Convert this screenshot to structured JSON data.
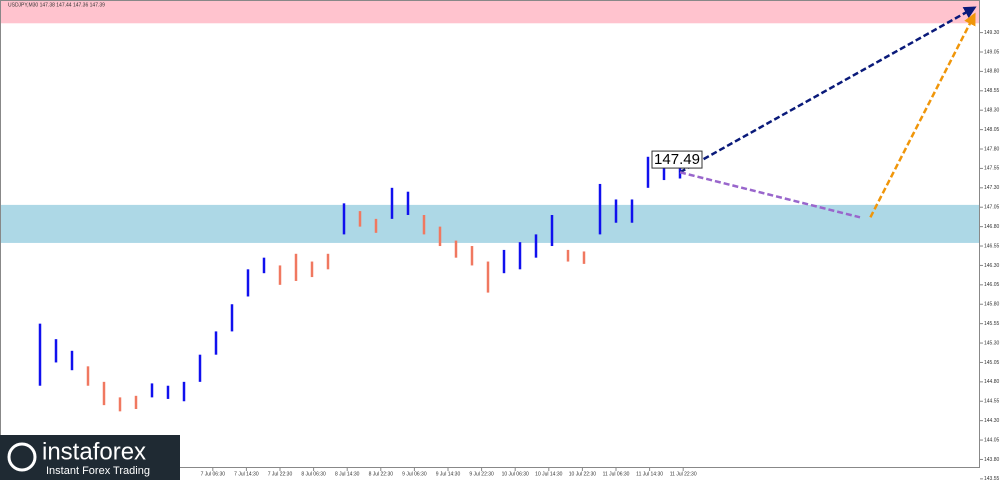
{
  "chart_data": {
    "type": "range-bars",
    "title": "USDJPY,M30  147.38 147.44 147.36 147.39",
    "lows": [
      144.75,
      145.05,
      144.95,
      144.75,
      144.5,
      144.42,
      144.45,
      144.6,
      144.58,
      144.55,
      144.8,
      145.15,
      145.45,
      145.9,
      146.2,
      146.05,
      146.1,
      146.15,
      146.25,
      146.7,
      146.8,
      146.72,
      146.9,
      146.95,
      146.7,
      146.55,
      146.4,
      146.3,
      145.95,
      146.2,
      146.25,
      146.4,
      146.55,
      146.35,
      146.32,
      146.7,
      146.85,
      146.85,
      147.3,
      147.4,
      147.42
    ],
    "highs": [
      145.55,
      145.35,
      145.2,
      145.0,
      144.8,
      144.6,
      144.62,
      144.78,
      144.75,
      144.8,
      145.15,
      145.45,
      145.8,
      146.25,
      146.4,
      146.3,
      146.45,
      146.35,
      146.45,
      147.1,
      147.0,
      146.9,
      147.3,
      147.25,
      146.95,
      146.8,
      146.62,
      146.55,
      146.35,
      146.5,
      146.6,
      146.7,
      146.95,
      146.5,
      146.48,
      147.35,
      147.15,
      147.15,
      147.7,
      147.58,
      147.55
    ],
    "bar_colors": [
      "#1010ee",
      "#1010ee",
      "#1010ee",
      "#f07860",
      "#f07860",
      "#f07860",
      "#f07860",
      "#1010ee",
      "#1010ee",
      "#1010ee",
      "#1010ee",
      "#1010ee",
      "#1010ee",
      "#1010ee",
      "#1010ee",
      "#f07860",
      "#f07860",
      "#f07860",
      "#f07860",
      "#1010ee",
      "#f07860",
      "#f07860",
      "#1010ee",
      "#1010ee",
      "#f07860",
      "#f07860",
      "#f07860",
      "#f07860",
      "#f07860",
      "#1010ee",
      "#1010ee",
      "#1010ee",
      "#1010ee",
      "#f07860",
      "#f07860",
      "#1010ee",
      "#1010ee",
      "#1010ee",
      "#1010ee",
      "#1010ee",
      "#1010ee"
    ],
    "zones": [
      {
        "from": 149.42,
        "to": 149.72,
        "color": "#ffc3ce"
      },
      {
        "from": 146.59,
        "to": 147.08,
        "color": "#add8e6"
      }
    ],
    "forecasts": [
      {
        "color": "#0a1a7a",
        "x": [
          40,
          58.4
        ],
        "y": [
          147.5,
          149.62
        ],
        "arrow": true
      },
      {
        "color": "#9966cc",
        "x": [
          40,
          51.25
        ],
        "y": [
          147.5,
          146.92
        ],
        "arrow": false
      },
      {
        "color": "#f0960a",
        "x": [
          51.9,
          58.4
        ],
        "y": [
          146.92,
          149.53
        ],
        "arrow": true
      }
    ],
    "price_callout": 147.49,
    "xlim": [
      0,
      58.75
    ],
    "ylim": [
      143.69,
      149.72
    ],
    "xticks": [
      {
        "value": 10.8,
        "label": "7 Jul 06:30"
      },
      {
        "value": 12.9,
        "label": "7 Jul 14:30"
      },
      {
        "value": 15.0,
        "label": "7 Jul 22:30"
      },
      {
        "value": 17.1,
        "label": "8 Jul 06:30"
      },
      {
        "value": 19.2,
        "label": "8 Jul 14:30"
      },
      {
        "value": 21.3,
        "label": "8 Jul 22:30"
      },
      {
        "value": 23.4,
        "label": "9 Jul 06:30"
      },
      {
        "value": 25.5,
        "label": "9 Jul 14:30"
      },
      {
        "value": 27.6,
        "label": "9 Jul 22:30"
      },
      {
        "value": 29.7,
        "label": "10 Jul 06:30"
      },
      {
        "value": 31.8,
        "label": "10 Jul 14:30"
      },
      {
        "value": 33.9,
        "label": "10 Jul 22:30"
      },
      {
        "value": 36.0,
        "label": "11 Jul 06:30"
      },
      {
        "value": 38.1,
        "label": "11 Jul 14:30"
      },
      {
        "value": 40.2,
        "label": "11 Jul 22:30"
      }
    ],
    "yticks": [
      {
        "value": 149.3,
        "label": "149.30"
      },
      149.05,
      {
        "value": 148.8,
        "label": "148.80"
      },
      148.55,
      {
        "value": 148.3,
        "label": "148.30"
      },
      148.05,
      {
        "value": 147.8,
        "label": "147.80"
      },
      147.55,
      {
        "value": 147.3,
        "label": "147.30"
      },
      147.05,
      {
        "value": 146.8,
        "label": "146.80"
      },
      146.55,
      {
        "value": 146.3,
        "label": "146.30"
      },
      146.05,
      {
        "value": 145.8,
        "label": "145.80"
      },
      145.55,
      {
        "value": 145.3,
        "label": "145.30"
      },
      145.05,
      {
        "value": 144.8,
        "label": "144.80"
      },
      144.55,
      {
        "value": 144.3,
        "label": "144.30"
      },
      144.05,
      {
        "value": 143.8,
        "label": "143.80"
      },
      143.55
    ],
    "watermark": {
      "brand": "instaforex",
      "tagline": "Instant Forex Trading"
    }
  }
}
